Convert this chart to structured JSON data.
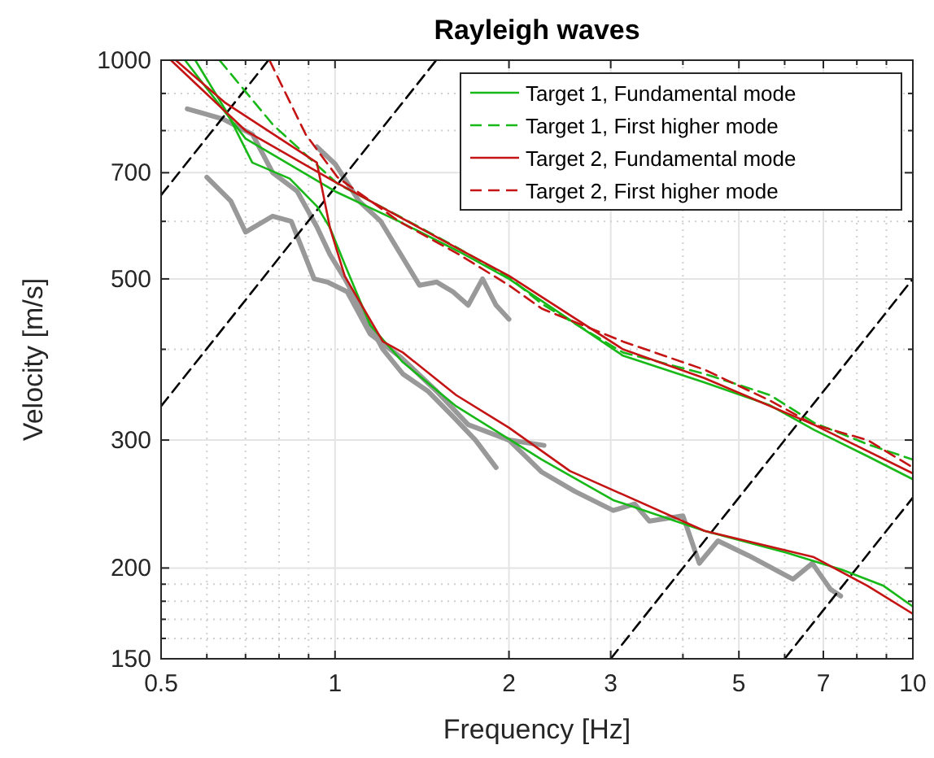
{
  "chart_data": {
    "type": "line",
    "title": "Rayleigh waves",
    "xlabel": "Frequency [Hz]",
    "ylabel": "Velocity [m/s]",
    "log": "xy",
    "grid": true,
    "legend": "top right",
    "xlim": [
      0.5,
      10
    ],
    "ylim": [
      150,
      1000
    ],
    "xticks": [
      0.5,
      {
        "value": 0.6,
        "label": null
      },
      {
        "value": 0.7,
        "label": null
      },
      {
        "value": 0.8,
        "label": null
      },
      {
        "value": 0.9,
        "label": null
      },
      1,
      2,
      3,
      {
        "value": 4,
        "label": null
      },
      5,
      {
        "value": 6,
        "label": null
      },
      7,
      {
        "value": 8,
        "label": null
      },
      {
        "value": 9,
        "label": null
      },
      10
    ],
    "yticks": [
      150,
      {
        "value": 160,
        "label": null
      },
      {
        "value": 170,
        "label": null
      },
      {
        "value": 180,
        "label": null
      },
      {
        "value": 190,
        "label": null
      },
      200,
      300,
      {
        "value": 400,
        "label": null
      },
      500,
      {
        "value": 600,
        "label": null
      },
      700,
      {
        "value": 800,
        "label": null
      },
      {
        "value": 900,
        "label": null
      },
      1000
    ],
    "series": [
      {
        "color": "#999999",
        "x": [
          0.555,
          0.64,
          0.72,
          0.78,
          0.86,
          0.93,
          0.98,
          1.04,
          1.11,
          1.21,
          1.31,
          1.45,
          1.62,
          1.75,
          1.9
        ],
        "values": [
          857,
          830,
          790,
          700,
          660,
          590,
          540,
          500,
          455,
          400,
          370,
          350,
          320,
          300,
          275
        ]
      },
      {
        "color": "#999999",
        "x": [
          0.6,
          0.66,
          0.7,
          0.78,
          0.84,
          0.92,
          0.97,
          1.05,
          1.15,
          1.3,
          1.5,
          1.7,
          2.0,
          2.3
        ],
        "values": [
          690,
          640,
          580,
          610,
          600,
          500,
          495,
          480,
          420,
          390,
          350,
          315,
          300,
          295
        ]
      },
      {
        "color": "#999999",
        "x": [
          0.93,
          1.0,
          1.1,
          1.2,
          1.3,
          1.4,
          1.5,
          1.6,
          1.7,
          1.8,
          1.9,
          2.0
        ],
        "values": [
          760,
          720,
          640,
          600,
          540,
          490,
          495,
          480,
          460,
          500,
          460,
          440
        ]
      },
      {
        "color": "#999999",
        "x": [
          2.0,
          2.28,
          2.6,
          3.03,
          3.3,
          3.5,
          4.0,
          4.27,
          4.6,
          5.2,
          6.2,
          6.7,
          7.2,
          7.5
        ],
        "values": [
          300,
          271,
          255,
          240,
          245,
          232,
          236,
          203,
          218,
          208,
          193,
          203,
          187,
          183
        ]
      },
      {
        "color": "#000000",
        "line_style": "dashed",
        "x": [
          0.5,
          0.767
        ],
        "values": [
          652,
          1000
        ]
      },
      {
        "color": "#000000",
        "line_style": "dashed",
        "x": [
          0.5,
          1.497
        ],
        "values": [
          334,
          1000
        ]
      },
      {
        "color": "#000000",
        "line_style": "dashed",
        "x": [
          3,
          10
        ],
        "values": [
          150,
          500
        ]
      },
      {
        "color": "#000000",
        "line_style": "dashed",
        "x": [
          6,
          10
        ],
        "values": [
          150,
          250
        ]
      },
      {
        "name": "Target 1, Fundamental mode",
        "color": "#17b817",
        "line_style": "solid",
        "x": [
          0.573,
          0.652,
          0.719,
          0.835,
          0.931,
          0.98,
          1.04,
          1.15,
          1.31,
          1.62,
          2.0,
          2.28,
          3.03,
          4.36,
          6.04,
          7.52,
          8.9,
          10
        ],
        "values": [
          1000,
          844,
          723,
          687,
          629,
          588,
          523,
          432,
          384,
          334,
          301,
          282,
          248,
          225,
          210,
          199,
          189,
          177
        ]
      },
      {
        "color": "#17b817",
        "line_style": "solid",
        "x": [
          0.55,
          0.7,
          1.0,
          1.29,
          1.64,
          2.0,
          3.15,
          4.36,
          5.66,
          6.74,
          8.35,
          10
        ],
        "values": [
          1000,
          780,
          660,
          600,
          545,
          500,
          392,
          360,
          335,
          310,
          285,
          265
        ]
      },
      {
        "name": "Target 1, First higher mode",
        "color": "#17b817",
        "line_style": "dashed",
        "x": [
          0.631,
          0.782,
          1.01,
          1.29,
          1.64,
          1.99,
          2.28,
          3.15,
          4.36,
          5.66,
          6.74,
          8.35,
          10
        ],
        "values": [
          1000,
          814,
          676,
          610,
          550,
          504,
          462,
          396,
          370,
          346,
          317,
          296,
          282
        ]
      },
      {
        "name": "Target 2, Fundamental mode",
        "color": "#c41414",
        "line_style": "solid",
        "x": [
          0.53,
          0.644,
          0.93,
          0.98,
          1.04,
          1.21,
          1.31,
          1.62,
          2.0,
          2.55,
          4.36,
          6.74,
          8.35,
          10
        ],
        "values": [
          1000,
          875,
          723,
          588,
          504,
          410,
          396,
          346,
          312,
          272,
          225,
          207,
          189,
          173
        ]
      },
      {
        "color": "#c41414",
        "line_style": "solid",
        "x": [
          0.52,
          0.7,
          1.0,
          1.6,
          2.0,
          3.15,
          4.36,
          6.74,
          10
        ],
        "values": [
          1000,
          800,
          680,
          555,
          505,
          400,
          365,
          315,
          270
        ]
      },
      {
        "name": "Target 2, First higher mode",
        "color": "#c41414",
        "line_style": "dashed",
        "x": [
          0.77,
          0.89,
          1.01,
          1.29,
          1.64,
          2.0,
          2.28,
          3.15,
          4.36,
          5.66,
          6.74,
          8.35,
          10
        ],
        "values": [
          1000,
          790,
          690,
          600,
          540,
          490,
          455,
          410,
          375,
          340,
          315,
          300,
          275
        ]
      }
    ]
  }
}
